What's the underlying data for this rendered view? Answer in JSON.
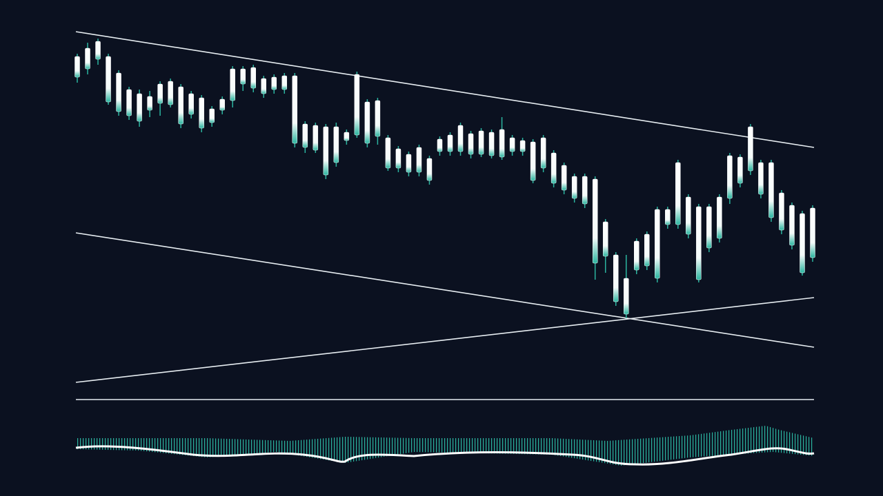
{
  "chart_data": {
    "type": "candlestick",
    "ylim": [
      0,
      550
    ],
    "color": "#ffffff",
    "wick_color": "#2bb5a0",
    "high": [
      512,
      528,
      534,
      512,
      488,
      464,
      460,
      458,
      472,
      476,
      468,
      458,
      452,
      436,
      450,
      494,
      494,
      496,
      480,
      482,
      484,
      484,
      414,
      412,
      410,
      412,
      402,
      486,
      446,
      448,
      394,
      378,
      370,
      380,
      364,
      392,
      398,
      412,
      400,
      404,
      402,
      420,
      394,
      390,
      388,
      394,
      372,
      354,
      338,
      338,
      334,
      272,
      224,
      220,
      244,
      254,
      290,
      290,
      358,
      308,
      294,
      294,
      308,
      368,
      366,
      410,
      358,
      358,
      314,
      296,
      284,
      292
    ],
    "close": [
      508,
      520,
      530,
      508,
      484,
      460,
      454,
      450,
      468,
      472,
      464,
      454,
      448,
      432,
      446,
      490,
      490,
      492,
      476,
      478,
      480,
      480,
      410,
      408,
      406,
      406,
      398,
      482,
      442,
      444,
      390,
      374,
      366,
      376,
      360,
      388,
      394,
      408,
      396,
      400,
      398,
      402,
      390,
      386,
      384,
      390,
      368,
      350,
      334,
      334,
      330,
      268,
      220,
      186,
      240,
      250,
      286,
      286,
      354,
      304,
      290,
      290,
      304,
      364,
      362,
      406,
      354,
      354,
      310,
      292,
      280,
      288
    ],
    "open": [
      478,
      490,
      504,
      442,
      428,
      422,
      414,
      430,
      440,
      438,
      410,
      424,
      404,
      412,
      430,
      444,
      468,
      462,
      454,
      460,
      460,
      382,
      376,
      372,
      336,
      354,
      386,
      394,
      382,
      392,
      346,
      346,
      340,
      340,
      328,
      370,
      370,
      370,
      366,
      366,
      364,
      362,
      370,
      370,
      328,
      346,
      324,
      314,
      302,
      294,
      208,
      218,
      152,
      134,
      198,
      204,
      186,
      264,
      264,
      250,
      184,
      230,
      244,
      302,
      324,
      342,
      308,
      274,
      256,
      234,
      194,
      216
    ],
    "low": [
      470,
      482,
      496,
      438,
      422,
      416,
      406,
      420,
      422,
      434,
      404,
      418,
      398,
      406,
      424,
      434,
      458,
      456,
      448,
      454,
      454,
      376,
      368,
      368,
      330,
      348,
      380,
      390,
      376,
      380,
      342,
      340,
      334,
      334,
      322,
      364,
      364,
      364,
      360,
      362,
      360,
      358,
      364,
      364,
      324,
      340,
      318,
      308,
      296,
      288,
      184,
      194,
      146,
      128,
      192,
      198,
      180,
      258,
      258,
      244,
      180,
      224,
      238,
      294,
      318,
      336,
      302,
      268,
      250,
      228,
      190,
      210
    ]
  }
}
